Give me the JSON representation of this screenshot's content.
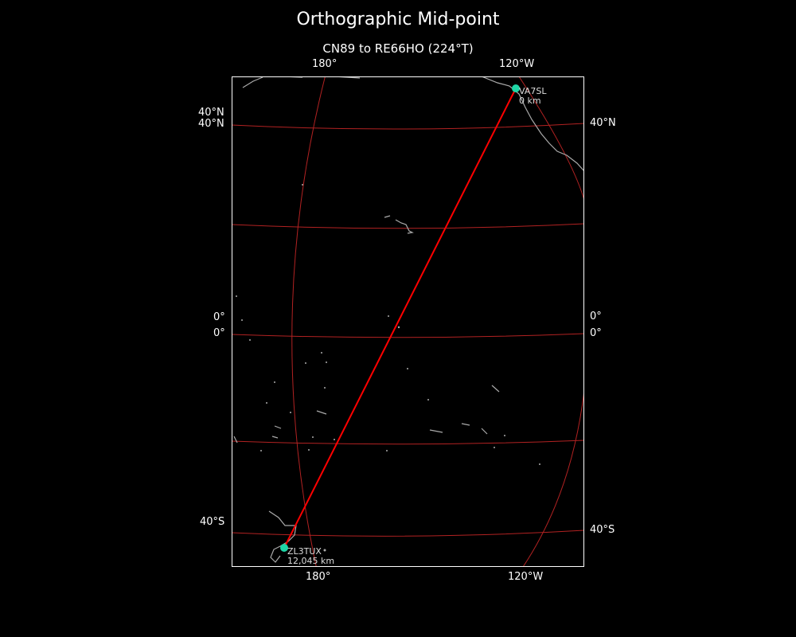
{
  "title": "Orthographic Mid-point",
  "subtitle": "CN89 to RE66HO (224°T)",
  "ticks": {
    "top": [
      "180°",
      "120°W"
    ],
    "bottom": [
      "180°",
      "120°W"
    ],
    "left": [
      "40°N",
      "40°N",
      "0°",
      "0°",
      "40°S"
    ],
    "right": [
      "40°N",
      "0°",
      "0°",
      "40°S"
    ]
  },
  "stations": [
    {
      "call": "VA7SL",
      "distance": "0 km"
    },
    {
      "call": "ZL3TUX",
      "distance": "12,045 km"
    }
  ],
  "colors": {
    "background": "#000000",
    "path": "#ff0000",
    "graticule": "#b22222",
    "coastline": "#aaaaaa",
    "station": "#1ed6a6"
  }
}
